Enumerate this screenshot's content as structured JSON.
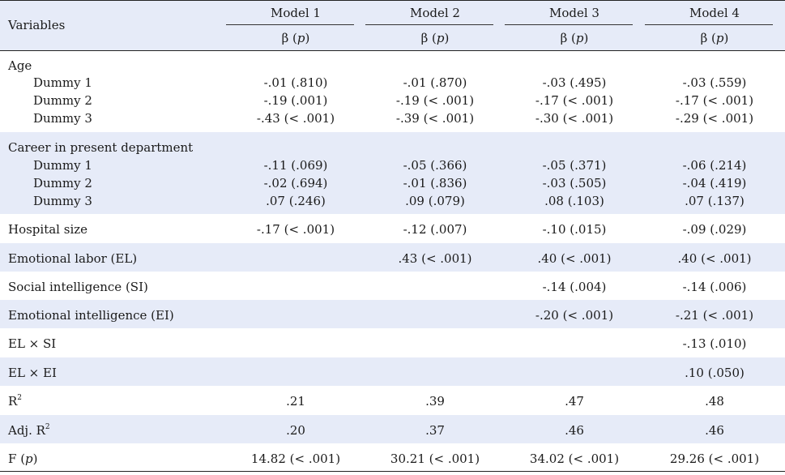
{
  "header": {
    "variables": "Variables",
    "models": [
      "Model 1",
      "Model 2",
      "Model 3",
      "Model 4"
    ],
    "beta": "β",
    "p": "p"
  },
  "groups": {
    "age": {
      "label": "Age",
      "rows": [
        {
          "label": "Dummy 1",
          "values": [
            "-.01 (.810)",
            "-.01 (.870)",
            "-.03 (.495)",
            "-.03 (.559)"
          ]
        },
        {
          "label": "Dummy 2",
          "values": [
            "-.19 (.001)",
            "-.19 (< .001)",
            "-.17 (< .001)",
            "-.17 (< .001)"
          ]
        },
        {
          "label": "Dummy 3",
          "values": [
            "-.43 (< .001)",
            "-.39 (< .001)",
            "-.30 (< .001)",
            "-.29 (< .001)"
          ]
        }
      ]
    },
    "career": {
      "label": "Career in present department",
      "rows": [
        {
          "label": "Dummy 1",
          "values": [
            "-.11 (.069)",
            "-.05 (.366)",
            "-.05 (.371)",
            "-.06 (.214)"
          ]
        },
        {
          "label": "Dummy 2",
          "values": [
            "-.02 (.694)",
            "-.01 (.836)",
            "-.03 (.505)",
            "-.04 (.419)"
          ]
        },
        {
          "label": "Dummy 3",
          "values": [
            ".07 (.246)",
            ".09 (.079)",
            ".08 (.103)",
            ".07 (.137)"
          ]
        }
      ]
    }
  },
  "rows": {
    "hospital": {
      "label": "Hospital size",
      "values": [
        "-.17 (< .001)",
        "-.12 (.007)",
        "-.10 (.015)",
        "-.09 (.029)"
      ]
    },
    "el": {
      "label": "Emotional labor (EL)",
      "values": [
        "",
        ".43 (< .001)",
        ".40 (< .001)",
        ".40 (< .001)"
      ]
    },
    "si": {
      "label": "Social intelligence (SI)",
      "values": [
        "",
        "",
        "-.14 (.004)",
        "-.14 (.006)"
      ]
    },
    "ei": {
      "label": "Emotional intelligence (EI)",
      "values": [
        "",
        "",
        "-.20 (< .001)",
        "-.21 (< .001)"
      ]
    },
    "elsi": {
      "label": "EL × SI",
      "values": [
        "",
        "",
        "",
        "-.13 (.010)"
      ]
    },
    "elei": {
      "label": "EL × EI",
      "values": [
        "",
        "",
        "",
        ".10 (.050)"
      ]
    },
    "r2": {
      "label": "R",
      "sup": "2",
      "values": [
        ".21",
        ".39",
        ".47",
        ".48"
      ]
    },
    "adjr2": {
      "label": "Adj. R",
      "sup": "2",
      "values": [
        ".20",
        ".37",
        ".46",
        ".46"
      ]
    },
    "f": {
      "label": "F",
      "plabel": "p",
      "values": [
        "14.82 (< .001)",
        "30.21 (< .001)",
        "34.02 (< .001)",
        "29.26 (< .001)"
      ]
    }
  }
}
